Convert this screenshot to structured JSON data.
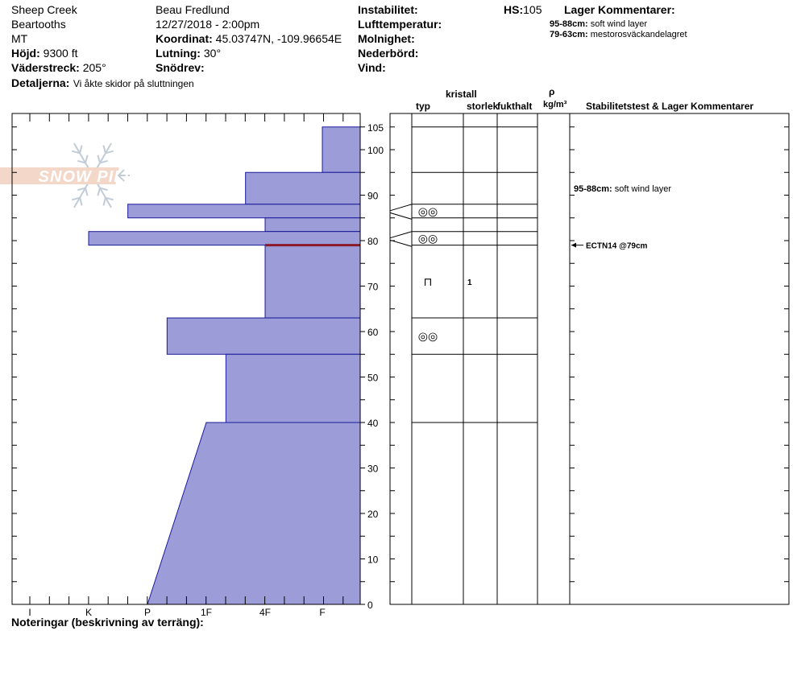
{
  "header": {
    "location": "Sheep Creek",
    "range": "Beartooths",
    "state": "MT",
    "elevation_label": "Höjd:",
    "elevation": "9300 ft",
    "aspect_label": "Väderstreck:",
    "aspect": "205°",
    "details_label": "Detaljerna:",
    "details": "Vi åkte skidor på sluttningen",
    "observer": "Beau  Fredlund",
    "datetime": "12/27/2018 - 2:00pm",
    "coord_label": "Koordinat:",
    "coord": "45.03747N, -109.96654E",
    "slope_label": "Lutning:",
    "slope": "30°",
    "snowdrift_label": "Snödrev:",
    "instability_label": "Instabilitet:",
    "airtemp_label": "Lufttemperatur:",
    "cloud_label": "Molnighet:",
    "precip_label": "Nederbörd:",
    "wind_label": "Vind:",
    "hs_label": "HS:",
    "hs": "105",
    "layer_comments_title": "Lager Kommentarer:",
    "layer_comments": [
      {
        "range": "95-88cm:",
        "text": "soft wind layer"
      },
      {
        "range": "79-63cm:",
        "text": "mestorosväckandelagret"
      }
    ]
  },
  "columns": {
    "crystal": "kristall",
    "type": "typ",
    "size": "storlek",
    "moisture": "fukthalt",
    "rho": "ρ",
    "density_unit": "kg/m³",
    "stability": "Stabilitetstest & Lager Kommentarer"
  },
  "footer": {
    "notes_label": "Noteringar (beskrivning av terräng):"
  },
  "watermark": {
    "text": "SNOW PILOT",
    "icon": "snowflake-icon"
  },
  "colors": {
    "fill": "#9c9cd8",
    "edge": "#1a1a99",
    "weak_layer": "#8b1a2a"
  },
  "chart_data": {
    "type": "snow-profile",
    "y_unit": "cm",
    "ylim": [
      0,
      108
    ],
    "y_ticks": [
      0,
      10,
      20,
      30,
      40,
      50,
      60,
      70,
      80,
      90,
      100,
      105
    ],
    "hardness_scale": [
      "I",
      "K",
      "P",
      "1F",
      "4F",
      "F"
    ],
    "hardness_profile": [
      {
        "top": 105,
        "bottom": 95,
        "hardness": "F"
      },
      {
        "top": 95,
        "bottom": 88,
        "hardness": "4F-"
      },
      {
        "top": 88,
        "bottom": 85,
        "hardness": "P-"
      },
      {
        "top": 85,
        "bottom": 82,
        "hardness": "4F"
      },
      {
        "top": 82,
        "bottom": 79,
        "hardness": "K"
      },
      {
        "top": 79,
        "bottom": 63,
        "hardness": "4F"
      },
      {
        "top": 63,
        "bottom": 55,
        "hardness": "P+"
      },
      {
        "top": 55,
        "bottom": 40,
        "hardness": "1F+"
      },
      {
        "top": 40,
        "bottom": 0,
        "hardness": "1F to P",
        "gradient": true
      }
    ],
    "layer_boundaries": [
      105,
      95,
      88,
      85,
      82,
      79,
      63,
      55,
      40
    ],
    "weak_layer": 79,
    "grain_symbols": [
      {
        "depth": 86.5,
        "symbol": "◎◎"
      },
      {
        "depth": 80.5,
        "symbol": "◎◎"
      },
      {
        "depth": 71,
        "symbol": "⊓"
      },
      {
        "depth": 59,
        "symbol": "◎◎"
      }
    ],
    "crystal_sizes": [
      {
        "depth": 71,
        "value": "1"
      }
    ],
    "stability_tests": [
      {
        "depth": 79,
        "label": "ECTN14 @79cm"
      }
    ],
    "layer_notes": [
      {
        "depth": 91.5,
        "range": "95-88cm:",
        "text": "soft wind layer"
      }
    ]
  }
}
